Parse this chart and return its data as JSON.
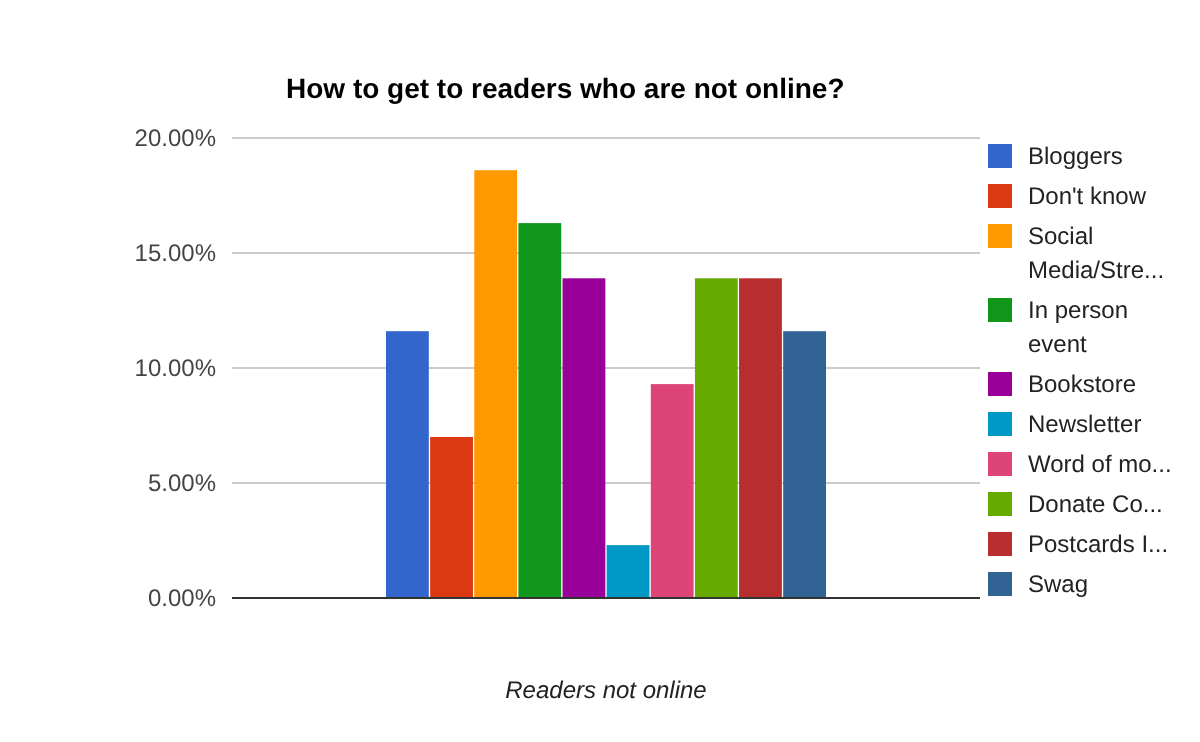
{
  "chart_data": {
    "type": "bar",
    "title": "How to get to readers who are not online?",
    "xlabel": "Readers not online",
    "categories": [
      null
    ],
    "series": [
      {
        "name": "Bloggers",
        "color": "#3366cc",
        "values": [
          11.6
        ]
      },
      {
        "name": "Don't know",
        "color": "#dc3912",
        "values": [
          7.0
        ]
      },
      {
        "name": "Social Media/Stre...",
        "color": "#ff9900",
        "values": [
          18.6
        ]
      },
      {
        "name": "In person event",
        "color": "#109618",
        "values": [
          16.3
        ]
      },
      {
        "name": "Bookstore",
        "color": "#990099",
        "values": [
          13.9
        ]
      },
      {
        "name": "Newsletter",
        "color": "#0099c6",
        "values": [
          2.3
        ]
      },
      {
        "name": "Word of mo...",
        "color": "#dd4477",
        "values": [
          9.3
        ]
      },
      {
        "name": "Donate Co...",
        "color": "#66aa00",
        "values": [
          13.9
        ]
      },
      {
        "name": "Postcards I...",
        "color": "#b82e2e",
        "values": [
          13.9
        ]
      },
      {
        "name": "Swag",
        "color": "#316395",
        "values": [
          11.6
        ]
      }
    ],
    "ylim": [
      0,
      20
    ],
    "yticks": [
      {
        "value": 0,
        "label": "0.00%"
      },
      {
        "value": 5,
        "label": "5.00%"
      },
      {
        "value": 10,
        "label": "10.00%"
      },
      {
        "value": 15,
        "label": "15.00%"
      },
      {
        "value": 20,
        "label": "20.00%"
      }
    ],
    "grid": "y",
    "legend": "right"
  }
}
